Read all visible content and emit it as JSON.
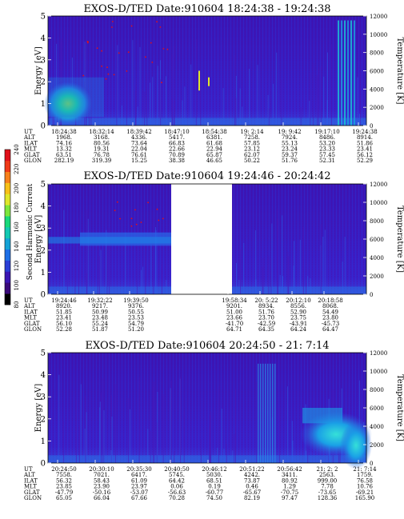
{
  "colorbar": {
    "label": "Second Harmonic Current",
    "ticks": [
      "80",
      "100",
      "120",
      "140",
      "160",
      "180",
      "200",
      "220",
      "240"
    ],
    "colors": [
      "#000000",
      "#3a0a7a",
      "#3b16b3",
      "#2a3fd6",
      "#1d6fe6",
      "#14a3d6",
      "#13c9b2",
      "#19d97a",
      "#7de63b",
      "#dfe62a",
      "#f7c018",
      "#f7801b",
      "#f03a18",
      "#e0101a"
    ]
  },
  "chart_data": [
    {
      "type": "heatmap",
      "title": "EXOS-D/TED   Date:910604   18:24:38 - 19:24:38",
      "ylabel": "Energy [eV]",
      "ylabel_right": "Temperature [K]",
      "ylim": [
        0,
        5
      ],
      "yticks": [
        "0",
        "1",
        "2",
        "3",
        "4",
        "5"
      ],
      "ylim_right": [
        0,
        12000
      ],
      "yticks_right": [
        "0",
        "2000",
        "4000",
        "6000",
        "8000",
        "10000",
        "12000"
      ],
      "table_rows": [
        "UT",
        "ALT",
        "ILAT",
        "MLT",
        "GLAT",
        "GLON"
      ],
      "columns": [
        [
          "18:24:38",
          "1968.",
          "74.16",
          "13.32",
          "63.51",
          "282.19"
        ],
        [
          "18:32:14",
          "3168.",
          "80.56",
          "19.31",
          "76.78",
          "319.39"
        ],
        [
          "18:39:42",
          "4336.",
          "73.64",
          "22.04",
          "76.61",
          "15.25"
        ],
        [
          "18:47:10",
          "5417.",
          "66.83",
          "22.66",
          "70.89",
          "38.38"
        ],
        [
          "18:54:38",
          "6381.",
          "61.68",
          "22.94",
          "65.87",
          "46.65"
        ],
        [
          "19: 2:14",
          "7258.",
          "57.85",
          "23.12",
          "62.07",
          "50.22"
        ],
        [
          "19: 9:42",
          "7924.",
          "55.13",
          "23.24",
          "59.37",
          "51.76"
        ],
        [
          "19:17:10",
          "8486.",
          "53.20",
          "23.33",
          "57.45",
          "52.31"
        ],
        [
          "19:24:38",
          "8914.",
          "51.86",
          "23.41",
          "56.12",
          "52.29"
        ]
      ]
    },
    {
      "type": "heatmap",
      "title": "EXOS-D/TED   Date:910604   19:24:46 - 20:24:42",
      "ylabel": "Energy [eV]",
      "ylabel_right": "Temperature [K]",
      "ylim": [
        0,
        5
      ],
      "yticks": [
        "0",
        "1",
        "2",
        "3",
        "4",
        "5"
      ],
      "ylim_right": [
        0,
        12000
      ],
      "yticks_right": [
        "0",
        "2000",
        "4000",
        "6000",
        "8000",
        "10000",
        "12000"
      ],
      "data_gap": [
        "19:40",
        "19:58"
      ],
      "table_rows": [
        "UT",
        "ALT",
        "ILAT",
        "MLT",
        "GLAT",
        "GLON"
      ],
      "columns": [
        [
          "19:24:46",
          "8920.",
          "51.85",
          "23.41",
          "56.10",
          "52.28"
        ],
        [
          "19:32:22",
          "9217.",
          "50.99",
          "23.48",
          "55.24",
          "51.87"
        ],
        [
          "19:39:50",
          "9376.",
          "50.55",
          "23.53",
          "54.79",
          "51.20"
        ],
        [
          "19:58:34",
          "9201.",
          "51.00",
          "23.66",
          "-41.70",
          "64.71"
        ],
        [
          "20: 5:22",
          "8934.",
          "51.76",
          "23.70",
          "-42.59",
          "64.35"
        ],
        [
          "20:12:10",
          "8556.",
          "52.90",
          "23.75",
          "-43.91",
          "64.24"
        ],
        [
          "20:18:58",
          "8068.",
          "54.49",
          "23.80",
          "-45.73",
          "64.47"
        ]
      ]
    },
    {
      "type": "heatmap",
      "title": "EXOS-D/TED   Date:910604   20:24:50 - 21: 7:14",
      "ylabel": "Energy [eV]",
      "ylabel_right": "Temperature [K]",
      "ylim": [
        0,
        5
      ],
      "yticks": [
        "0",
        "1",
        "2",
        "3",
        "4",
        "5"
      ],
      "ylim_right": [
        0,
        12000
      ],
      "yticks_right": [
        "0",
        "2000",
        "4000",
        "6000",
        "8000",
        "10000",
        "12000"
      ],
      "table_rows": [
        "UT",
        "ALT",
        "ILAT",
        "MLT",
        "GLAT",
        "GLON"
      ],
      "columns": [
        [
          "20:24:50",
          "7558.",
          "56.32",
          "23.85",
          "-47.79",
          "65.05"
        ],
        [
          "20:30:10",
          "7021.",
          "58.43",
          "23.90",
          "-50.16",
          "66.04"
        ],
        [
          "20:35:30",
          "6417.",
          "61.09",
          "23.97",
          "-53.07",
          "67.66"
        ],
        [
          "20:40:50",
          "5745.",
          "64.42",
          "0.06",
          "-56.63",
          "70.28"
        ],
        [
          "20:46:12",
          "5030.",
          "68.51",
          "0.19",
          "-60.77",
          "74.50"
        ],
        [
          "20:51:22",
          "4242.",
          "73.87",
          "0.46",
          "-65.67",
          "82.19"
        ],
        [
          "20:56:42",
          "3411.",
          "80.92",
          "1.29",
          "-70.75",
          "97.47"
        ],
        [
          "21: 2: 2",
          "2563.",
          "999.00",
          "7.78",
          "-73.65",
          "128.36"
        ],
        [
          "21: 7:14",
          "1759.",
          "76.58",
          "10.76",
          "-69.21",
          "165.90"
        ]
      ]
    }
  ]
}
